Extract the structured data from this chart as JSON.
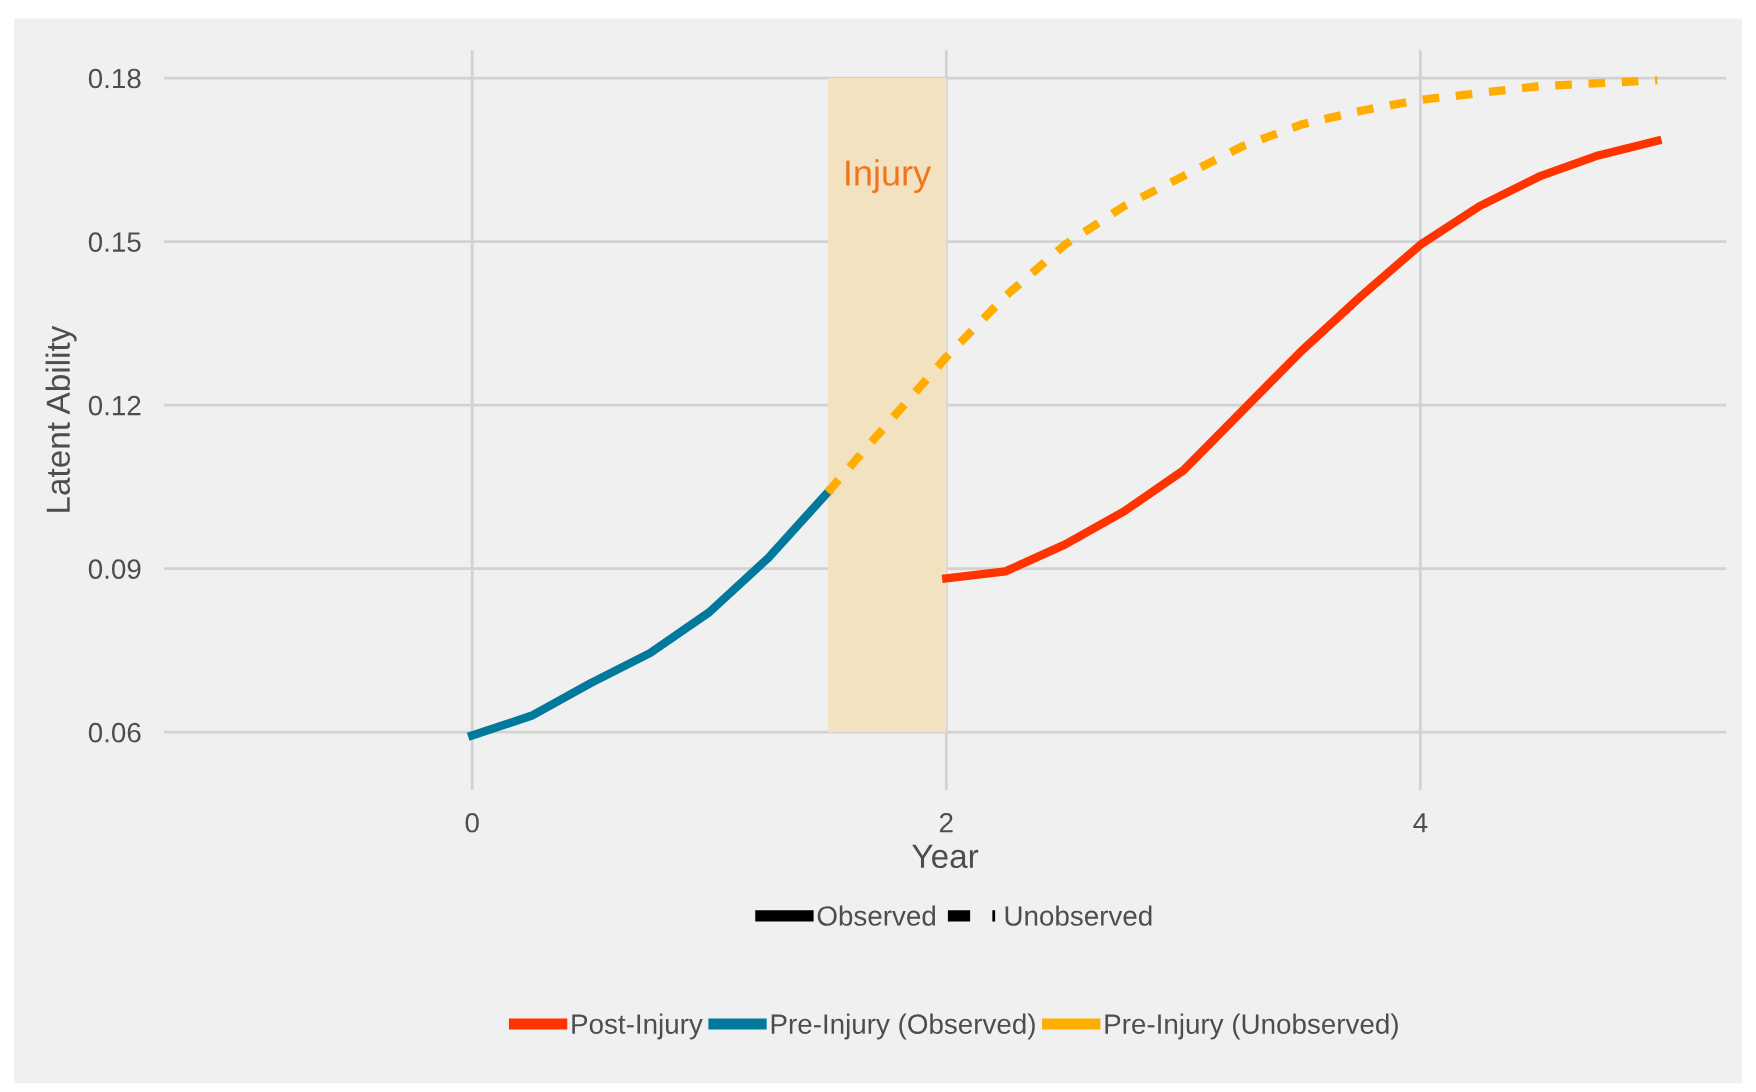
{
  "chart_data": {
    "type": "line",
    "xlabel": "Year",
    "ylabel": "Latent Ability",
    "xlim": [
      -1.3,
      5.29
    ],
    "xticks": [
      0,
      2,
      4
    ],
    "ylim": [
      0.0494,
      0.1851
    ],
    "yticks": [
      0.06,
      0.09,
      0.12,
      0.15,
      0.18
    ],
    "grid": true,
    "legend": "bottom",
    "series": [
      {
        "name": "Post-Injury",
        "color": "#ff3300",
        "line_style": "solid",
        "x": [
          2,
          2.25,
          2.5,
          2.75,
          3,
          3.25,
          3.5,
          3.75,
          4,
          4.25,
          4.5,
          4.75,
          5
        ],
        "values": [
          0.0882,
          0.0895,
          0.0944,
          0.1005,
          0.108,
          0.119,
          0.13,
          0.14,
          0.1494,
          0.1565,
          0.1619,
          0.1658,
          0.1685
        ]
      },
      {
        "name": "Pre-Injury (Observed)",
        "color": "#00799c",
        "line_style": "solid",
        "x": [
          0,
          0.25,
          0.5,
          0.75,
          1,
          1.25,
          1.5
        ],
        "values": [
          0.0594,
          0.063,
          0.069,
          0.0745,
          0.082,
          0.092,
          0.104
        ]
      },
      {
        "name": "Pre-Injury (Unobserved)",
        "color": "#ffae00",
        "line_style": "dashed",
        "x": [
          1.5,
          1.75,
          2,
          2.25,
          2.5,
          2.75,
          3,
          3.25,
          3.5,
          3.75,
          4,
          4.5,
          5
        ],
        "values": [
          0.104,
          0.1165,
          0.1288,
          0.14,
          0.1494,
          0.1565,
          0.162,
          0.1675,
          0.1715,
          0.174,
          0.176,
          0.1785,
          0.1796
        ]
      }
    ],
    "bands": [
      {
        "axis": "x",
        "from": 1.5,
        "to": 2,
        "label": "Injury",
        "color": "#f2e2c0"
      }
    ],
    "annotations": [
      "Observed",
      "Unobserved"
    ]
  }
}
